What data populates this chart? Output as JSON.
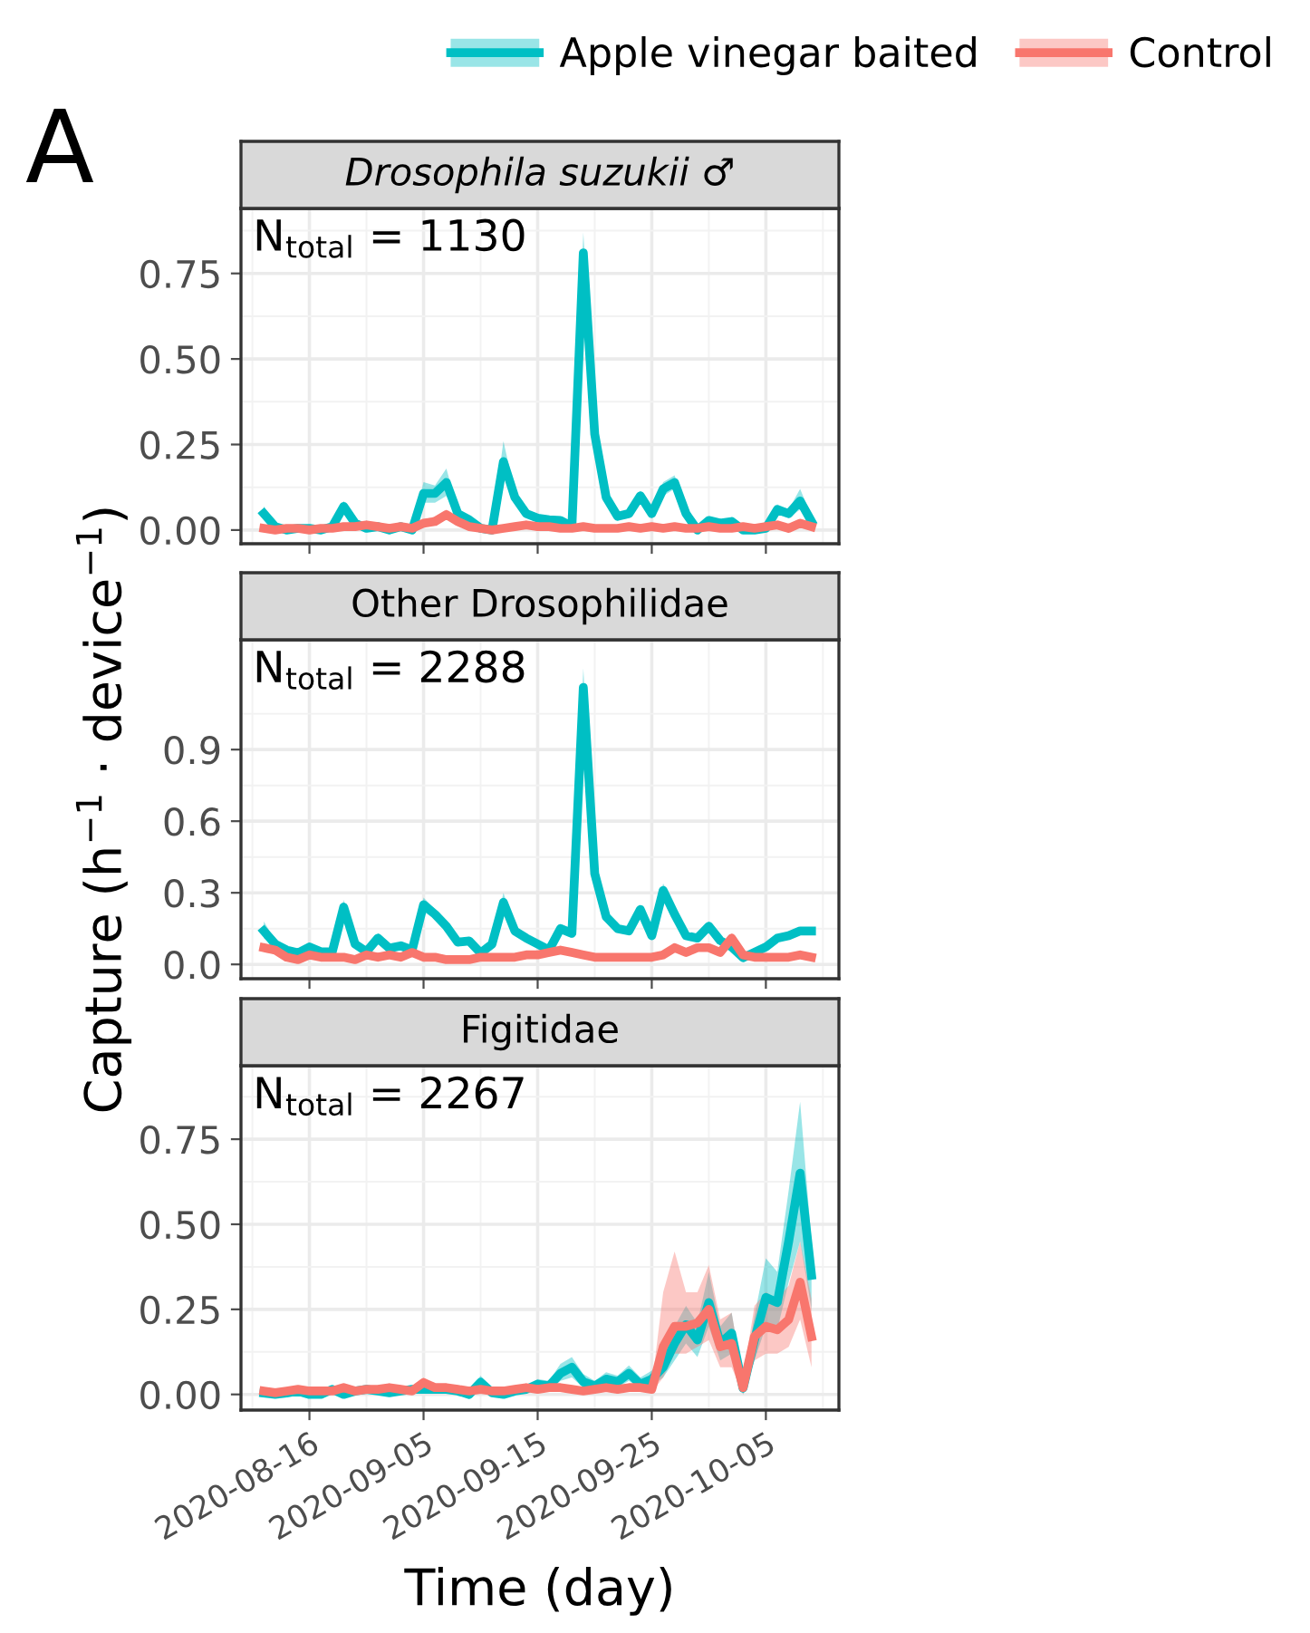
{
  "chart_data": [
    {
      "type": "line",
      "title": "Drosophila suzukii ♂",
      "annotations": [
        "A",
        "N$_{total}$ = 1130"
      ],
      "legend": "top right",
      "grid": true,
      "tick_labels": "y",
      "line_style": "solid",
      "marker": "none",
      "categories": [
        null,
        null,
        null,
        null,
        "2020-08-16",
        null,
        null,
        null,
        null,
        null,
        null,
        null,
        null,
        null,
        "2020-09-05",
        null,
        null,
        null,
        null,
        null,
        null,
        null,
        null,
        null,
        "2020-09-15",
        null,
        null,
        null,
        null,
        null,
        null,
        null,
        null,
        null,
        "2020-09-25",
        null,
        null,
        null,
        null,
        null,
        null,
        null,
        null,
        null,
        "2020-10-05",
        null,
        null,
        null,
        null
      ],
      "ylim": [
        -0.04,
        0.94
      ],
      "yticks": [
        {
          "value": 0,
          "label": "0.00"
        },
        {
          "value": 0.25,
          "label": "0.25"
        },
        {
          "value": 0.5,
          "label": "0.50"
        },
        {
          "value": 0.75,
          "label": "0.75"
        }
      ],
      "series": [
        {
          "name": "Apple vinegar baited",
          "color": "#00bfc4",
          "values": [
            0.048,
            0.01,
            0,
            0.005,
            0.005,
            0,
            0.01,
            0.069,
            0.02,
            0.005,
            0.01,
            0,
            0.01,
            0,
            0.107,
            0.107,
            0.139,
            0.048,
            0.03,
            0.005,
            0,
            0.2,
            0.096,
            0.048,
            0.035,
            0.03,
            0.028,
            0.01,
            0.81,
            0.28,
            0.096,
            0.04,
            0.048,
            0.1,
            0.048,
            0.12,
            0.139,
            0.048,
            0,
            0.028,
            0.02,
            0.025,
            0,
            0,
            0.005,
            0.06,
            0.048,
            0.085,
            0.025
          ],
          "lower": [
            0.03,
            0,
            0,
            0,
            0,
            0,
            0,
            0.055,
            0.01,
            0,
            0,
            0,
            0,
            0,
            0.08,
            0.08,
            0.1,
            0.035,
            0.02,
            0,
            0,
            0.16,
            0.08,
            0.035,
            0.025,
            0.02,
            0.02,
            0,
            0.76,
            0.25,
            0.08,
            0.03,
            0.035,
            0.085,
            0.035,
            0.1,
            0.12,
            0.035,
            0,
            0.015,
            0.01,
            0.015,
            0,
            0,
            0,
            0.045,
            0.035,
            0.06,
            0.01
          ],
          "upper": [
            0.07,
            0.02,
            0.01,
            0.015,
            0.015,
            0.01,
            0.02,
            0.085,
            0.03,
            0.015,
            0.02,
            0.01,
            0.02,
            0.01,
            0.14,
            0.13,
            0.18,
            0.06,
            0.04,
            0.015,
            0.01,
            0.26,
            0.11,
            0.06,
            0.045,
            0.04,
            0.04,
            0.02,
            0.87,
            0.31,
            0.11,
            0.05,
            0.06,
            0.115,
            0.06,
            0.14,
            0.16,
            0.06,
            0.01,
            0.04,
            0.03,
            0.035,
            0.01,
            0.01,
            0.015,
            0.075,
            0.06,
            0.12,
            0.04
          ]
        },
        {
          "name": "Control",
          "color": "#f8766d",
          "values": [
            0.005,
            0,
            0.005,
            0.005,
            0,
            0.005,
            0.005,
            0.01,
            0.01,
            0.015,
            0.01,
            0.005,
            0.01,
            0.005,
            0.02,
            0.025,
            0.045,
            0.025,
            0.01,
            0.005,
            0,
            0.005,
            0.01,
            0.015,
            0.01,
            0.01,
            0.005,
            0.005,
            0.01,
            0.005,
            0.005,
            0.005,
            0.01,
            0.005,
            0.01,
            0.005,
            0.01,
            0.005,
            0.005,
            0.01,
            0.005,
            0.005,
            0.01,
            0.005,
            0.01,
            0.015,
            0.005,
            0.02,
            0.01
          ],
          "lower": [
            0,
            0,
            0,
            0,
            0,
            0,
            0,
            0.005,
            0.005,
            0.01,
            0.005,
            0,
            0.005,
            0,
            0.01,
            0.015,
            0.03,
            0.015,
            0.005,
            0,
            0,
            0,
            0.005,
            0.01,
            0.005,
            0.005,
            0,
            0,
            0.005,
            0,
            0,
            0,
            0.005,
            0,
            0.005,
            0,
            0.005,
            0,
            0,
            0.005,
            0,
            0,
            0.005,
            0,
            0.005,
            0.01,
            0,
            0.01,
            0.005
          ],
          "upper": [
            0.015,
            0.01,
            0.015,
            0.015,
            0.01,
            0.015,
            0.015,
            0.02,
            0.02,
            0.025,
            0.02,
            0.015,
            0.02,
            0.015,
            0.03,
            0.04,
            0.06,
            0.035,
            0.02,
            0.015,
            0.01,
            0.015,
            0.02,
            0.025,
            0.02,
            0.02,
            0.015,
            0.015,
            0.02,
            0.015,
            0.015,
            0.015,
            0.02,
            0.015,
            0.02,
            0.015,
            0.02,
            0.015,
            0.015,
            0.02,
            0.015,
            0.015,
            0.02,
            0.015,
            0.02,
            0.025,
            0.015,
            0.03,
            0.02
          ]
        }
      ]
    },
    {
      "type": "line",
      "title": "Other Drosophilidae",
      "ylabel": "Capture (h$^{−1}$ · device$^{−1}$)",
      "annotations": [
        "N$_{total}$ = 2288"
      ],
      "grid": true,
      "tick_labels": "y",
      "line_style": "solid",
      "marker": "none",
      "categories": [
        null,
        null,
        null,
        null,
        "2020-08-16",
        null,
        null,
        null,
        null,
        null,
        null,
        null,
        null,
        null,
        "2020-09-05",
        null,
        null,
        null,
        null,
        null,
        null,
        null,
        null,
        null,
        "2020-09-15",
        null,
        null,
        null,
        null,
        null,
        null,
        null,
        null,
        null,
        "2020-09-25",
        null,
        null,
        null,
        null,
        null,
        null,
        null,
        null,
        null,
        "2020-10-05",
        null,
        null,
        null,
        null
      ],
      "ylim": [
        -0.06,
        1.36
      ],
      "yticks": [
        {
          "value": 0,
          "label": "0.0"
        },
        {
          "value": 0.3,
          "label": "0.3"
        },
        {
          "value": 0.6,
          "label": "0.6"
        },
        {
          "value": 0.9,
          "label": "0.9"
        }
      ],
      "series": [
        {
          "color": "#00bfc4",
          "values": [
            0.14,
            0.085,
            0.06,
            0.048,
            0.073,
            0.053,
            0.053,
            0.24,
            0.085,
            0.053,
            0.11,
            0.068,
            0.078,
            0.06,
            0.25,
            0.21,
            0.16,
            0.093,
            0.098,
            0.048,
            0.085,
            0.26,
            0.14,
            0.11,
            0.085,
            0.06,
            0.15,
            0.13,
            1.16,
            0.38,
            0.2,
            0.15,
            0.14,
            0.23,
            0.12,
            0.31,
            0.21,
            0.12,
            0.11,
            0.16,
            0.1,
            0.073,
            0.028,
            0.05,
            0.073,
            0.11,
            0.12,
            0.14,
            0.14
          ],
          "lower": [
            0.11,
            0.07,
            0.045,
            0.035,
            0.06,
            0.04,
            0.04,
            0.2,
            0.07,
            0.04,
            0.09,
            0.055,
            0.065,
            0.045,
            0.22,
            0.19,
            0.14,
            0.08,
            0.085,
            0.035,
            0.07,
            0.22,
            0.12,
            0.095,
            0.07,
            0.045,
            0.13,
            0.11,
            1.08,
            0.35,
            0.18,
            0.135,
            0.125,
            0.21,
            0.105,
            0.28,
            0.19,
            0.105,
            0.095,
            0.14,
            0.085,
            0.06,
            0.015,
            0.035,
            0.06,
            0.095,
            0.105,
            0.125,
            0.125
          ],
          "upper": [
            0.18,
            0.1,
            0.075,
            0.06,
            0.085,
            0.065,
            0.065,
            0.27,
            0.1,
            0.065,
            0.13,
            0.08,
            0.09,
            0.075,
            0.28,
            0.23,
            0.18,
            0.105,
            0.11,
            0.06,
            0.1,
            0.3,
            0.16,
            0.125,
            0.1,
            0.075,
            0.17,
            0.15,
            1.24,
            0.41,
            0.22,
            0.165,
            0.155,
            0.25,
            0.135,
            0.34,
            0.23,
            0.135,
            0.125,
            0.18,
            0.115,
            0.085,
            0.04,
            0.065,
            0.085,
            0.125,
            0.135,
            0.155,
            0.155
          ]
        },
        {
          "color": "#f8766d",
          "values": [
            0.07,
            0.06,
            0.03,
            0.02,
            0.04,
            0.03,
            0.03,
            0.03,
            0.02,
            0.04,
            0.03,
            0.04,
            0.03,
            0.05,
            0.03,
            0.03,
            0.02,
            0.02,
            0.02,
            0.03,
            0.03,
            0.03,
            0.03,
            0.04,
            0.04,
            0.05,
            0.06,
            0.05,
            0.04,
            0.03,
            0.03,
            0.03,
            0.03,
            0.03,
            0.03,
            0.04,
            0.07,
            0.05,
            0.07,
            0.07,
            0.05,
            0.11,
            0.04,
            0.03,
            0.03,
            0.03,
            0.03,
            0.04,
            0.03
          ],
          "lower": [
            0.05,
            0.045,
            0.015,
            0.005,
            0.025,
            0.015,
            0.015,
            0.015,
            0.005,
            0.025,
            0.015,
            0.025,
            0.015,
            0.035,
            0.015,
            0.015,
            0.005,
            0.005,
            0.005,
            0.015,
            0.015,
            0.015,
            0.015,
            0.025,
            0.025,
            0.035,
            0.045,
            0.035,
            0.025,
            0.015,
            0.015,
            0.015,
            0.015,
            0.015,
            0.015,
            0.025,
            0.055,
            0.035,
            0.055,
            0.055,
            0.035,
            0.09,
            0.025,
            0.015,
            0.015,
            0.015,
            0.015,
            0.025,
            0.015
          ],
          "upper": [
            0.09,
            0.075,
            0.045,
            0.035,
            0.055,
            0.045,
            0.045,
            0.045,
            0.035,
            0.055,
            0.045,
            0.055,
            0.045,
            0.065,
            0.045,
            0.045,
            0.035,
            0.035,
            0.035,
            0.045,
            0.045,
            0.045,
            0.045,
            0.055,
            0.055,
            0.065,
            0.075,
            0.065,
            0.055,
            0.045,
            0.045,
            0.045,
            0.045,
            0.045,
            0.045,
            0.055,
            0.085,
            0.065,
            0.085,
            0.085,
            0.065,
            0.13,
            0.055,
            0.045,
            0.045,
            0.045,
            0.045,
            0.055,
            0.045
          ]
        }
      ]
    },
    {
      "type": "line",
      "title": "Figitidae",
      "xlabel": "Time (day)",
      "annotations": [
        "N$_{total}$ = 2267"
      ],
      "grid": true,
      "line_style": "solid",
      "marker": "none",
      "categories": [
        null,
        null,
        null,
        null,
        "2020-08-16",
        null,
        null,
        null,
        null,
        null,
        null,
        null,
        null,
        null,
        "2020-09-05",
        null,
        null,
        null,
        null,
        null,
        null,
        null,
        null,
        null,
        "2020-09-15",
        null,
        null,
        null,
        null,
        null,
        null,
        null,
        null,
        null,
        "2020-09-25",
        null,
        null,
        null,
        null,
        null,
        null,
        null,
        null,
        null,
        "2020-10-05",
        null,
        null,
        null,
        null
      ],
      "ylim": [
        -0.046,
        0.966
      ],
      "yticks": [
        {
          "value": 0,
          "label": "0.00"
        },
        {
          "value": 0.25,
          "label": "0.25"
        },
        {
          "value": 0.5,
          "label": "0.50"
        },
        {
          "value": 0.75,
          "label": "0.75"
        }
      ],
      "series": [
        {
          "color": "#00bfc4",
          "values": [
            0.004,
            0,
            0.004,
            0.01,
            0,
            0,
            0.015,
            0,
            0.01,
            0.015,
            0.01,
            0.005,
            0.01,
            0.015,
            0.015,
            0.015,
            0.015,
            0.01,
            0,
            0.036,
            0.005,
            0,
            0.01,
            0.015,
            0.03,
            0.025,
            0.062,
            0.08,
            0.037,
            0.025,
            0.045,
            0.037,
            0.062,
            0.03,
            0.045,
            0.08,
            0.15,
            0.205,
            0.16,
            0.27,
            0.15,
            0.18,
            0.018,
            0.16,
            0.285,
            0.27,
            0.45,
            0.65,
            0.35
          ],
          "lower": [
            0,
            0,
            0,
            0,
            0,
            0,
            0.005,
            0,
            0,
            0.005,
            0,
            0,
            0,
            0.005,
            0.005,
            0.005,
            0.005,
            0,
            0,
            0.02,
            0,
            0,
            0,
            0.005,
            0.015,
            0.01,
            0.04,
            0.05,
            0.02,
            0.01,
            0.03,
            0.02,
            0.04,
            0.015,
            0.025,
            0.05,
            0.1,
            0.15,
            0.11,
            0.2,
            0.1,
            0.12,
            0,
            0.1,
            0.2,
            0.19,
            0.33,
            0.45,
            0.25
          ],
          "upper": [
            0.01,
            0.008,
            0.01,
            0.02,
            0.008,
            0.008,
            0.025,
            0.008,
            0.02,
            0.025,
            0.02,
            0.012,
            0.02,
            0.025,
            0.025,
            0.025,
            0.025,
            0.02,
            0.008,
            0.055,
            0.012,
            0.008,
            0.02,
            0.025,
            0.045,
            0.04,
            0.09,
            0.11,
            0.06,
            0.04,
            0.065,
            0.055,
            0.085,
            0.05,
            0.07,
            0.11,
            0.2,
            0.26,
            0.21,
            0.36,
            0.2,
            0.24,
            0.04,
            0.23,
            0.4,
            0.36,
            0.6,
            0.86,
            0.45
          ]
        },
        {
          "color": "#f8766d",
          "values": [
            0.01,
            0.005,
            0.01,
            0.015,
            0.01,
            0.01,
            0.01,
            0.02,
            0.01,
            0.015,
            0.015,
            0.02,
            0.015,
            0.01,
            0.035,
            0.02,
            0.02,
            0.015,
            0.01,
            0.015,
            0.01,
            0.01,
            0.015,
            0.02,
            0.015,
            0.02,
            0.02,
            0.015,
            0.01,
            0.015,
            0.02,
            0.015,
            0.02,
            0.02,
            0.015,
            0.14,
            0.2,
            0.2,
            0.21,
            0.25,
            0.14,
            0.15,
            0.02,
            0.17,
            0.2,
            0.19,
            0.22,
            0.33,
            0.17
          ],
          "lower": [
            0,
            0,
            0,
            0.005,
            0,
            0,
            0,
            0.01,
            0,
            0.005,
            0.005,
            0.01,
            0.005,
            0,
            0.02,
            0.01,
            0.01,
            0.005,
            0,
            0.005,
            0,
            0,
            0.005,
            0.01,
            0.005,
            0.01,
            0.01,
            0.005,
            0,
            0.005,
            0.01,
            0.005,
            0.01,
            0.01,
            0.005,
            0.05,
            0.12,
            0.12,
            0.14,
            0.16,
            0.08,
            0.08,
            0,
            0.1,
            0.12,
            0.12,
            0.14,
            0.22,
            0.08
          ],
          "upper": [
            0.02,
            0.015,
            0.02,
            0.025,
            0.02,
            0.02,
            0.02,
            0.03,
            0.02,
            0.025,
            0.025,
            0.03,
            0.025,
            0.02,
            0.05,
            0.03,
            0.03,
            0.025,
            0.02,
            0.025,
            0.02,
            0.02,
            0.025,
            0.03,
            0.025,
            0.03,
            0.03,
            0.025,
            0.02,
            0.025,
            0.03,
            0.025,
            0.03,
            0.03,
            0.025,
            0.3,
            0.42,
            0.3,
            0.3,
            0.38,
            0.22,
            0.24,
            0.05,
            0.26,
            0.3,
            0.28,
            0.32,
            0.45,
            0.28
          ]
        }
      ]
    }
  ]
}
